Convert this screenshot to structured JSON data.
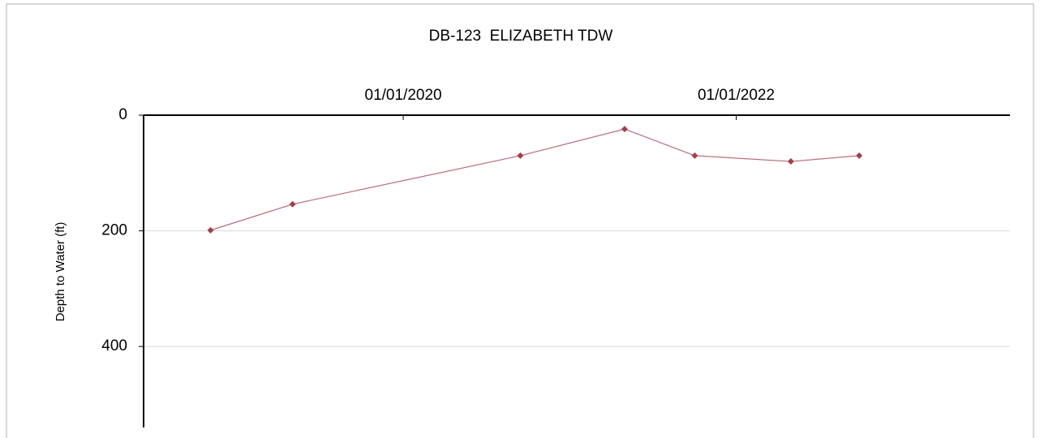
{
  "chart_data": {
    "type": "line",
    "title": "DB-123  ELIZABETH TDW",
    "y_label": "Depth to Water (ft)",
    "x": [
      "2018-11-04",
      "2019-05-03",
      "2020-09-14",
      "2021-05-01",
      "2021-10-02",
      "2022-05-01",
      "2022-09-28"
    ],
    "values": [
      199,
      154,
      70,
      24,
      70,
      80,
      70
    ],
    "color": "#a0404a",
    "line_color": "#b86a78",
    "xlim": [
      "2018-06-10",
      "2023-08-25"
    ],
    "xticks": [
      {
        "value": "2020-01-01",
        "label": "01/01/2020"
      },
      {
        "value": "2022-01-01",
        "label": "01/01/2022"
      }
    ],
    "ylim": [
      0,
      540
    ],
    "yticks": [
      0,
      200,
      400
    ],
    "y_inverted": true,
    "grid": true
  }
}
